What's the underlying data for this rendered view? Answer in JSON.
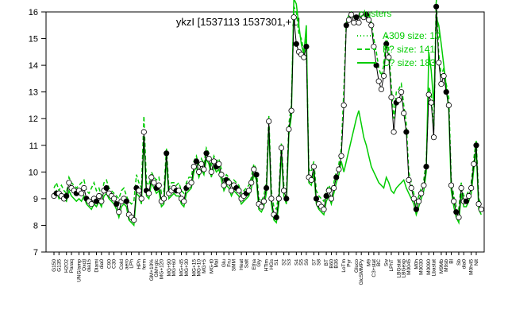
{
  "chart_data": {
    "type": "line",
    "title": "ykzI [1537113 1537301,+1]",
    "xlabel": "",
    "ylabel": "",
    "ylim": [
      7,
      16
    ],
    "yticks": [
      7,
      8,
      9,
      10,
      11,
      12,
      13,
      14,
      15,
      16
    ],
    "grid": false,
    "legend_position": "top-right",
    "x_tick_labels": [
      "G150",
      "G135",
      "H2O2",
      "Paraq",
      "UNG/amp",
      "Oxctl",
      "dia15",
      "Diami",
      "dia0",
      "C90",
      "C30",
      "Cold",
      "aero",
      "LPh",
      "HPh",
      "ferm",
      "GM+10%",
      "GM+glc",
      "MG+120",
      "MG+90",
      "MG+60",
      "MG+45",
      "MG+30",
      "MG+15",
      "MG+10",
      "MG+5",
      "MG-t0",
      "Mal",
      "Glu",
      "Fru",
      "SMM",
      "Heat",
      "Salt",
      "Etha",
      "Gly",
      "HTim",
      "HGs",
      "S1",
      "S2",
      "S3",
      "S4",
      "S5",
      "S6",
      "S7",
      "S8",
      "BT",
      "B60",
      "B36",
      "LoTm",
      "Pyr",
      "Gluco",
      "GlcSMMPy",
      "M9",
      "C3+stat",
      "BC",
      "Sw",
      "LPhT",
      "LBGstat",
      "LBGexp",
      "M0045",
      "M0h",
      "M0030",
      "M0090",
      "Lbastat",
      "M9Mb",
      "M9sb",
      "Bl",
      "Sb",
      "dia0",
      "M0h45",
      "Nit"
    ],
    "series": [
      {
        "name": "A309 size: 10",
        "style": "dotted"
      },
      {
        "name": "B? size: 141",
        "style": "dashed"
      },
      {
        "name": "C? size: 183",
        "style": "solid"
      }
    ],
    "x": [
      1,
      2,
      3,
      4,
      5,
      6,
      7,
      8,
      9,
      10,
      11,
      12,
      13,
      14,
      15,
      16,
      17,
      18,
      19,
      20,
      21,
      22,
      23,
      24,
      25,
      26,
      27,
      28,
      29,
      30,
      31,
      32,
      33,
      34,
      35,
      36,
      37,
      38,
      39,
      40,
      41,
      42,
      43,
      44,
      45,
      46,
      47,
      48,
      49,
      50,
      51,
      52,
      53,
      54,
      55,
      56,
      57,
      58,
      59,
      60,
      61,
      62,
      63,
      64,
      65,
      66,
      67,
      68,
      69,
      70,
      71,
      72,
      73,
      74,
      75,
      76,
      77,
      78,
      79,
      80,
      81,
      82,
      83,
      84,
      85,
      86,
      87,
      88,
      89,
      90,
      91,
      92,
      93,
      94,
      95,
      96,
      97,
      98,
      99,
      100,
      101,
      102,
      103,
      104,
      105,
      106,
      107,
      108,
      109,
      110,
      111,
      112,
      113,
      114,
      115,
      116,
      117,
      118,
      119,
      120,
      121,
      122,
      123,
      124,
      125,
      126,
      127,
      128,
      129,
      130,
      131,
      132,
      133,
      134,
      135,
      136,
      137,
      138,
      139,
      140,
      141,
      142,
      143,
      144,
      145,
      146,
      147,
      148,
      149,
      150,
      151,
      152,
      153,
      154,
      155,
      156,
      157,
      158,
      159,
      160,
      161,
      162,
      163,
      164,
      165,
      166,
      167,
      168,
      169,
      170
    ],
    "black_values": [
      9.1,
      9.2,
      9.2,
      9.1,
      9.0,
      9.1,
      9.6,
      9.4,
      9.3,
      9.2,
      9.3,
      9.2,
      9.4,
      9.0,
      8.9,
      8.8,
      9.0,
      8.9,
      9.1,
      8.9,
      9.3,
      9.4,
      9.2,
      9.1,
      9.0,
      8.8,
      8.5,
      8.9,
      9.0,
      8.9,
      8.4,
      8.3,
      8.2,
      9.4,
      9.3,
      9.0,
      11.5,
      9.3,
      9.2,
      9.8,
      9.6,
      9.4,
      9.5,
      8.9,
      9.0,
      10.7,
      9.2,
      9.3,
      9.4,
      9.3,
      9.3,
      9.0,
      8.9,
      9.4,
      9.5,
      9.6,
      10.2,
      10.4,
      10.0,
      10.3,
      10.1,
      10.7,
      10.5,
      10.0,
      10.4,
      10.2,
      10.3,
      9.9,
      9.5,
      9.7,
      9.6,
      9.3,
      9.5,
      9.4,
      9.3,
      9.0,
      9.1,
      9.2,
      9.3,
      9.6,
      10.1,
      9.9,
      8.8,
      8.7,
      8.9,
      9.4,
      11.9,
      9.0,
      8.4,
      8.3,
      9.0,
      10.9,
      9.3,
      9.0,
      11.6,
      12.3,
      15.8,
      14.8,
      14.5,
      14.4,
      14.3,
      14.7,
      9.8,
      9.7,
      10.2,
      9.0,
      8.8,
      8.7,
      8.6,
      9.1,
      9.3,
      9.0,
      9.4,
      9.8,
      10.1,
      10.6,
      12.5,
      15.5,
      15.7,
      15.9,
      15.6,
      15.8,
      15.6,
      15.9,
      15.8,
      15.9,
      15.7,
      15.5,
      14.7,
      14.0,
      13.4,
      13.1,
      13.6,
      14.8,
      14.3,
      12.8,
      11.5,
      12.6,
      12.7,
      13.0,
      12.2,
      11.5,
      9.7,
      9.4,
      9.0,
      8.6,
      8.9,
      9.2,
      9.5,
      10.2,
      12.9,
      12.6,
      11.3,
      16.2,
      14.1,
      13.3,
      13.6,
      13.0,
      12.5,
      9.5,
      8.9,
      8.5,
      8.3,
      9.4,
      8.9,
      8.9,
      9.1,
      9.4,
      10.3,
      11.0,
      8.8,
      8.6
    ],
    "green_values": [
      9.4,
      9.6,
      9.3,
      9.5,
      9.3,
      9.2,
      9.8,
      9.6,
      9.5,
      9.4,
      9.5,
      9.6,
      9.7,
      9.3,
      9.2,
      9.4,
      9.6,
      9.3,
      9.4,
      9.1,
      9.6,
      9.7,
      9.4,
      9.3,
      9.2,
      9.1,
      9.0,
      9.3,
      9.4,
      9.1,
      8.9,
      8.8,
      8.9,
      9.9,
      9.6,
      9.4,
      12.1,
      9.6,
      9.5,
      10.0,
      9.8,
      9.7,
      9.8,
      9.2,
      9.3,
      10.9,
      9.4,
      9.6,
      9.6,
      9.5,
      9.6,
      9.3,
      9.2,
      9.6,
      9.8,
      9.8,
      10.4,
      10.6,
      10.2,
      10.5,
      10.3,
      10.9,
      10.7,
      10.2,
      10.6,
      10.4,
      10.5,
      10.1,
      9.7,
      9.9,
      9.8,
      9.5,
      9.7,
      9.6,
      9.5,
      9.2,
      9.3,
      9.4,
      9.5,
      9.8,
      10.3,
      10.1,
      9.0,
      8.9,
      9.1,
      9.6,
      12.1,
      9.3,
      8.7,
      8.6,
      9.2,
      11.1,
      9.5,
      9.2,
      11.8,
      12.5,
      16.2,
      16.0,
      15.2,
      15.0,
      14.5,
      15.0,
      10.1,
      10.0,
      10.4,
      9.3,
      9.1,
      9.0,
      8.9,
      9.3,
      9.5,
      9.3,
      9.6,
      10.0,
      10.3,
      10.9,
      13.1,
      15.6,
      15.9,
      16.0,
      15.8,
      15.9,
      15.8,
      16.0,
      15.9,
      16.0,
      15.9,
      15.6,
      15.0,
      14.5,
      13.9,
      13.6,
      14.0,
      15.1,
      14.6,
      13.2,
      12.0,
      13.0,
      13.1,
      13.3,
      12.5,
      11.8,
      10.0,
      9.6,
      9.2,
      8.8,
      9.1,
      9.4,
      9.7,
      10.4,
      13.2,
      12.9,
      11.6,
      16.5,
      14.4,
      13.6,
      13.9,
      13.3,
      12.8,
      9.7,
      9.1,
      8.7,
      8.6,
      9.6,
      9.1,
      9.1,
      9.3,
      9.6,
      10.5,
      11.2,
      9.0,
      8.8
    ],
    "green_c_values": [
      9.2,
      9.3,
      9.0,
      9.1,
      9.0,
      8.9,
      9.3,
      9.1,
      9.0,
      8.9,
      9.0,
      8.9,
      9.1,
      8.8,
      8.7,
      8.6,
      8.8,
      8.7,
      8.9,
      8.7,
      9.1,
      9.2,
      9.0,
      8.9,
      8.8,
      8.6,
      8.3,
      8.7,
      8.8,
      8.7,
      8.2,
      8.1,
      8.0,
      9.2,
      9.1,
      8.8,
      11.3,
      9.1,
      9.0,
      9.6,
      9.4,
      9.2,
      9.3,
      8.7,
      8.8,
      10.5,
      9.0,
      9.1,
      9.2,
      9.1,
      9.1,
      8.8,
      8.7,
      9.2,
      9.3,
      9.4,
      10.0,
      10.2,
      9.8,
      10.1,
      9.9,
      10.5,
      10.3,
      9.8,
      10.2,
      10.0,
      10.1,
      9.7,
      9.3,
      9.5,
      9.4,
      9.1,
      9.3,
      9.2,
      9.1,
      8.8,
      8.9,
      9.0,
      9.1,
      9.4,
      9.9,
      9.7,
      8.6,
      8.5,
      8.7,
      9.2,
      11.7,
      8.8,
      8.2,
      8.1,
      8.8,
      10.7,
      9.1,
      8.8,
      11.4,
      12.1,
      16.5,
      16.3,
      15.5,
      14.8,
      14.4,
      15.5,
      9.6,
      9.5,
      10.0,
      8.8,
      8.6,
      8.5,
      8.4,
      8.9,
      9.1,
      8.8,
      9.2,
      9.6,
      9.9,
      10.4,
      10.0,
      10.4,
      10.8,
      11.2,
      11.6,
      12.0,
      12.3,
      11.8,
      11.3,
      11.0,
      10.6,
      10.2,
      10.0,
      9.8,
      9.6,
      9.5,
      9.4,
      9.8,
      9.6,
      9.3,
      9.2,
      9.4,
      9.5,
      9.6,
      9.7,
      9.4,
      9.2,
      9.0,
      8.8,
      8.4,
      8.7,
      9.0,
      9.3,
      10.0,
      14.5,
      13.8,
      12.5,
      15.8,
      15.5,
      14.8,
      14.0,
      13.2,
      12.3,
      9.3,
      8.7,
      8.3,
      8.1,
      9.2,
      8.7,
      8.7,
      8.9,
      9.2,
      10.1,
      10.8,
      8.6,
      8.4
    ]
  },
  "legend": {
    "title": "clusters",
    "entries": [
      "A309 size: 10",
      "B? size: 141",
      "C? size: 183"
    ],
    "color": "#00cc00"
  },
  "colors": {
    "line": "#000000",
    "cluster": "#00cc00",
    "point_fill": "#ffffff"
  }
}
